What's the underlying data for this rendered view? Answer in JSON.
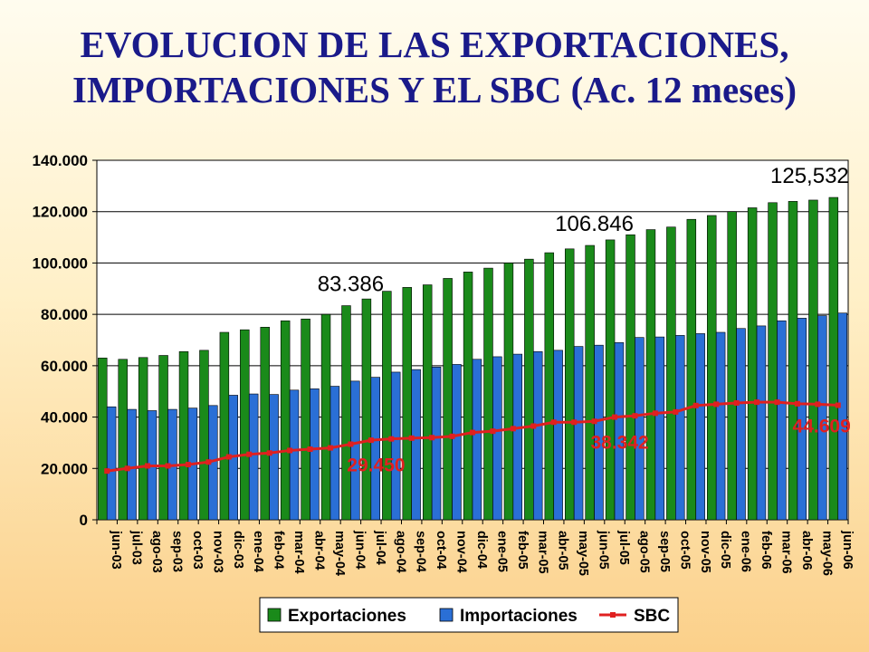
{
  "title_lines": [
    "EVOLUCION DE LAS EXPORTACIONES,",
    "IMPORTACIONES Y EL SBC (Ac. 12 meses)"
  ],
  "chart_data": {
    "type": "bar",
    "categories": [
      "jun-03",
      "jul-03",
      "ago-03",
      "sep-03",
      "oct-03",
      "nov-03",
      "dic-03",
      "ene-04",
      "feb-04",
      "mar-04",
      "abr-04",
      "may-04",
      "jun-04",
      "jul-04",
      "ago-04",
      "sep-04",
      "oct-04",
      "nov-04",
      "dic-04",
      "ene-05",
      "feb-05",
      "mar-05",
      "abr-05",
      "may-05",
      "jun-05",
      "jul-05",
      "ago-05",
      "sep-05",
      "oct-05",
      "nov-05",
      "dic-05",
      "ene-06",
      "feb-06",
      "mar-06",
      "abr-06",
      "may-06",
      "jun-06"
    ],
    "series": [
      {
        "name": "Exportaciones",
        "kind": "bar",
        "color": "#1a8a1a",
        "values": [
          63000,
          62500,
          63200,
          64000,
          65500,
          66000,
          73000,
          74000,
          75000,
          77500,
          78200,
          80000,
          83386,
          86000,
          89000,
          90500,
          91500,
          94000,
          96500,
          98000,
          100000,
          101500,
          104000,
          105500,
          106846,
          109000,
          111000,
          113000,
          114000,
          117000,
          118500,
          120000,
          121500,
          123500,
          124000,
          124500,
          125532
        ]
      },
      {
        "name": "Importaciones",
        "kind": "bar",
        "color": "#2a6fd6",
        "values": [
          44000,
          43000,
          42500,
          43000,
          43500,
          44500,
          48500,
          49000,
          48800,
          50500,
          51000,
          52000,
          54000,
          55500,
          57500,
          58500,
          59500,
          60500,
          62500,
          63500,
          64500,
          65500,
          66000,
          67500,
          68000,
          69000,
          71000,
          71200,
          71800,
          72500,
          73000,
          74500,
          75500,
          77500,
          78500,
          79500,
          80500
        ]
      },
      {
        "name": "SBC",
        "kind": "line",
        "color": "#e02020",
        "values": [
          19000,
          20000,
          21000,
          21000,
          21500,
          22500,
          24500,
          25500,
          26000,
          27000,
          27500,
          28000,
          29450,
          31000,
          31500,
          31800,
          32000,
          32500,
          34000,
          34500,
          35500,
          36500,
          38000,
          38000,
          38342,
          40000,
          40500,
          41500,
          42000,
          44500,
          45000,
          45500,
          45800,
          45800,
          45200,
          45000,
          44609
        ]
      }
    ],
    "ylim": [
      0,
      140000
    ],
    "yticks": [
      0,
      20000,
      40000,
      60000,
      80000,
      100000,
      120000,
      140000
    ],
    "ytick_labels": [
      "0",
      "20.000",
      "40.000",
      "60.000",
      "80.000",
      "100.000",
      "120.000",
      "140.000"
    ],
    "grid": true,
    "legend_position": "bottom",
    "annotations": [
      {
        "text": "83.386",
        "series": "Exportaciones",
        "index": 12,
        "color": "#000000"
      },
      {
        "text": "106.846",
        "series": "Exportaciones",
        "index": 24,
        "color": "#000000"
      },
      {
        "text": "125,532",
        "series": "Exportaciones",
        "index": 36,
        "color": "#000000"
      },
      {
        "text": "29.450",
        "series": "SBC",
        "index": 12,
        "color": "#e02020"
      },
      {
        "text": "38.342",
        "series": "SBC",
        "index": 24,
        "color": "#e02020"
      },
      {
        "text": "44.609",
        "series": "SBC",
        "index": 36,
        "color": "#e02020"
      }
    ]
  }
}
